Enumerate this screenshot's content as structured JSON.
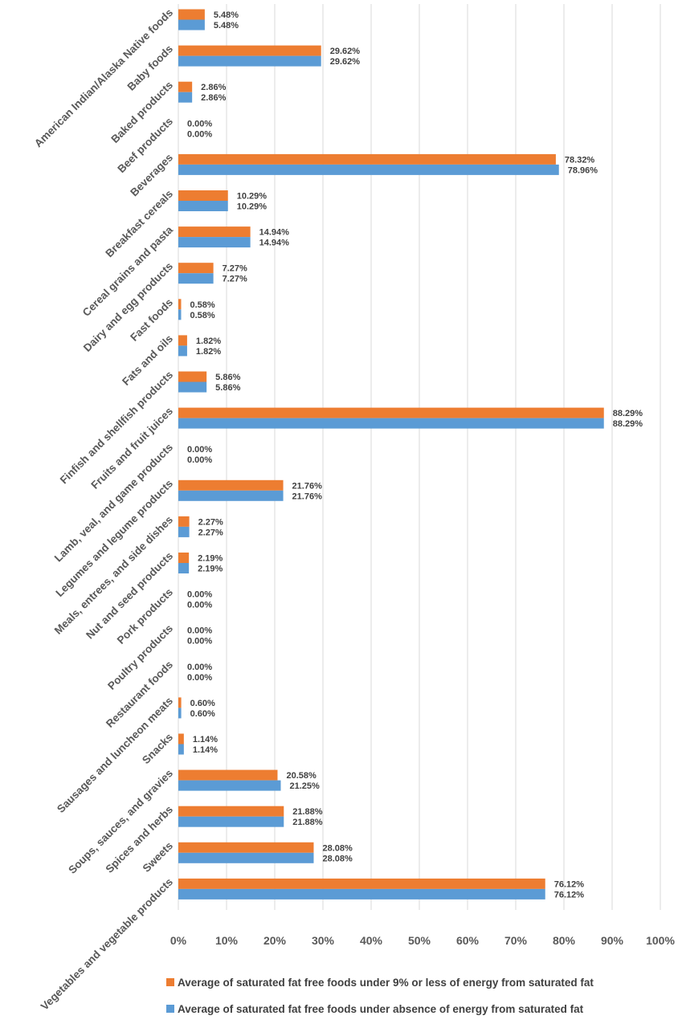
{
  "chart_data": {
    "type": "bar",
    "orientation": "horizontal",
    "categories": [
      "American Indian/Alaska Native foods",
      "Baby foods",
      "Baked products",
      "Beef products",
      "Beverages",
      "Breakfast cereals",
      "Cereal grains and pasta",
      "Dairy and egg products",
      "Fast foods",
      "Fats and oils",
      "Finfish and shellfish products",
      "Fruits and fruit juices",
      "Lamb, veal, and game products",
      "Legumes and legume products",
      "Meals, entrees, and side dishes",
      "Nut and seed products",
      "Pork products",
      "Poultry products",
      "Restaurant foods",
      "Sausages and luncheon meats",
      "Snacks",
      "Soups, sauces, and gravies",
      "Spices and herbs",
      "Sweets",
      "Vegetables and vegetable products"
    ],
    "series": [
      {
        "name": "Average of saturated fat free foods under 9% or less of energy from saturated fat",
        "color": "#ED7D31",
        "values": [
          5.48,
          29.62,
          2.86,
          0.0,
          78.32,
          10.29,
          14.94,
          7.27,
          0.58,
          1.82,
          5.86,
          88.29,
          0.0,
          21.76,
          2.27,
          2.19,
          0.0,
          0.0,
          0.0,
          0.6,
          1.14,
          20.58,
          21.88,
          28.08,
          76.12
        ],
        "labels": [
          "5.48%",
          "29.62%",
          "2.86%",
          "0.00%",
          "78.32%",
          "10.29%",
          "14.94%",
          "7.27%",
          "0.58%",
          "1.82%",
          "5.86%",
          "88.29%",
          "0.00%",
          "21.76%",
          "2.27%",
          "2.19%",
          "0.00%",
          "0.00%",
          "0.00%",
          "0.60%",
          "1.14%",
          "20.58%",
          "21.88%",
          "28.08%",
          "76.12%"
        ]
      },
      {
        "name": "Average of saturated fat free foods under absence of energy from saturated fat",
        "color": "#5B9BD5",
        "values": [
          5.48,
          29.62,
          2.86,
          0.0,
          78.96,
          10.29,
          14.94,
          7.27,
          0.58,
          1.82,
          5.86,
          88.29,
          0.0,
          21.76,
          2.27,
          2.19,
          0.0,
          0.0,
          0.0,
          0.6,
          1.14,
          21.25,
          21.88,
          28.08,
          76.12
        ],
        "labels": [
          "5.48%",
          "29.62%",
          "2.86%",
          "0.00%",
          "78.96%",
          "10.29%",
          "14.94%",
          "7.27%",
          "0.58%",
          "1.82%",
          "5.86%",
          "88.29%",
          "0.00%",
          "21.76%",
          "2.27%",
          "2.19%",
          "0.00%",
          "0.00%",
          "0.00%",
          "0.60%",
          "1.14%",
          "21.25%",
          "21.88%",
          "28.08%",
          "76.12%"
        ]
      }
    ],
    "xlim": [
      0,
      100
    ],
    "xticks": [
      0,
      10,
      20,
      30,
      40,
      50,
      60,
      70,
      80,
      90,
      100
    ],
    "xtick_labels": [
      "0%",
      "10%",
      "20%",
      "30%",
      "40%",
      "50%",
      "60%",
      "70%",
      "80%",
      "90%",
      "100%"
    ],
    "grid": true,
    "legend_position": "bottom"
  }
}
